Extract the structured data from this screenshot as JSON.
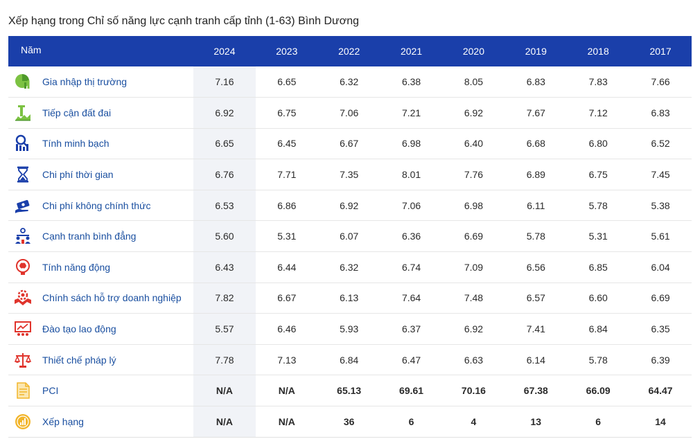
{
  "title": "Xếp hạng trong Chỉ số năng lực cạnh tranh cấp tỉnh (1-63) Bình Dương",
  "table": {
    "header_label": "Năm",
    "years": [
      "2024",
      "2023",
      "2022",
      "2021",
      "2020",
      "2019",
      "2018",
      "2017"
    ],
    "rows": [
      {
        "label": "Gia nhập thị trường",
        "icon": "market-entry-icon",
        "values": [
          "7.16",
          "6.65",
          "6.32",
          "6.38",
          "8.05",
          "6.83",
          "7.83",
          "7.66"
        ]
      },
      {
        "label": "Tiếp cận đất đai",
        "icon": "land-access-icon",
        "values": [
          "6.92",
          "6.75",
          "7.06",
          "7.21",
          "6.92",
          "7.67",
          "7.12",
          "6.83"
        ]
      },
      {
        "label": "Tính minh bạch",
        "icon": "transparency-icon",
        "values": [
          "6.65",
          "6.45",
          "6.67",
          "6.98",
          "6.40",
          "6.68",
          "6.80",
          "6.52"
        ]
      },
      {
        "label": "Chi phí thời gian",
        "icon": "hourglass-icon",
        "values": [
          "6.76",
          "7.71",
          "7.35",
          "8.01",
          "7.76",
          "6.89",
          "6.75",
          "7.45"
        ]
      },
      {
        "label": "Chi phí không chính thức",
        "icon": "money-icon",
        "values": [
          "6.53",
          "6.86",
          "6.92",
          "7.06",
          "6.98",
          "6.11",
          "5.78",
          "5.38"
        ]
      },
      {
        "label": "Cạnh tranh bình đẳng",
        "icon": "fair-competition-icon",
        "values": [
          "5.60",
          "5.31",
          "6.07",
          "6.36",
          "6.69",
          "5.78",
          "5.31",
          "5.61"
        ]
      },
      {
        "label": "Tính năng động",
        "icon": "dynamism-icon",
        "values": [
          "6.43",
          "6.44",
          "6.32",
          "6.74",
          "7.09",
          "6.56",
          "6.85",
          "6.04"
        ]
      },
      {
        "label": "Chính sách hỗ trợ doanh nghiệp",
        "icon": "business-support-icon",
        "values": [
          "7.82",
          "6.67",
          "6.13",
          "7.64",
          "7.48",
          "6.57",
          "6.60",
          "6.69"
        ]
      },
      {
        "label": "Đào tạo lao động",
        "icon": "labor-training-icon",
        "values": [
          "5.57",
          "6.46",
          "5.93",
          "6.37",
          "6.92",
          "7.41",
          "6.84",
          "6.35"
        ]
      },
      {
        "label": "Thiết chế pháp lý",
        "icon": "scales-icon",
        "values": [
          "7.78",
          "7.13",
          "6.84",
          "6.47",
          "6.63",
          "6.14",
          "5.78",
          "6.39"
        ]
      },
      {
        "label": "PCI",
        "icon": "document-icon",
        "bold": true,
        "values": [
          "N/A",
          "N/A",
          "65.13",
          "69.61",
          "70.16",
          "67.38",
          "66.09",
          "64.47"
        ]
      },
      {
        "label": "Xếp hạng",
        "icon": "ranking-coin-icon",
        "bold": true,
        "values": [
          "N/A",
          "N/A",
          "36",
          "6",
          "4",
          "13",
          "6",
          "14"
        ]
      }
    ]
  },
  "colors": {
    "header_bg": "#1a3faa",
    "label_text": "#1a4fa0",
    "highlight_col": "#f1f3f7",
    "icon_green": "#7cc242",
    "icon_blue": "#1a3faa",
    "icon_red": "#e0342c",
    "icon_gold": "#f2b52b"
  }
}
